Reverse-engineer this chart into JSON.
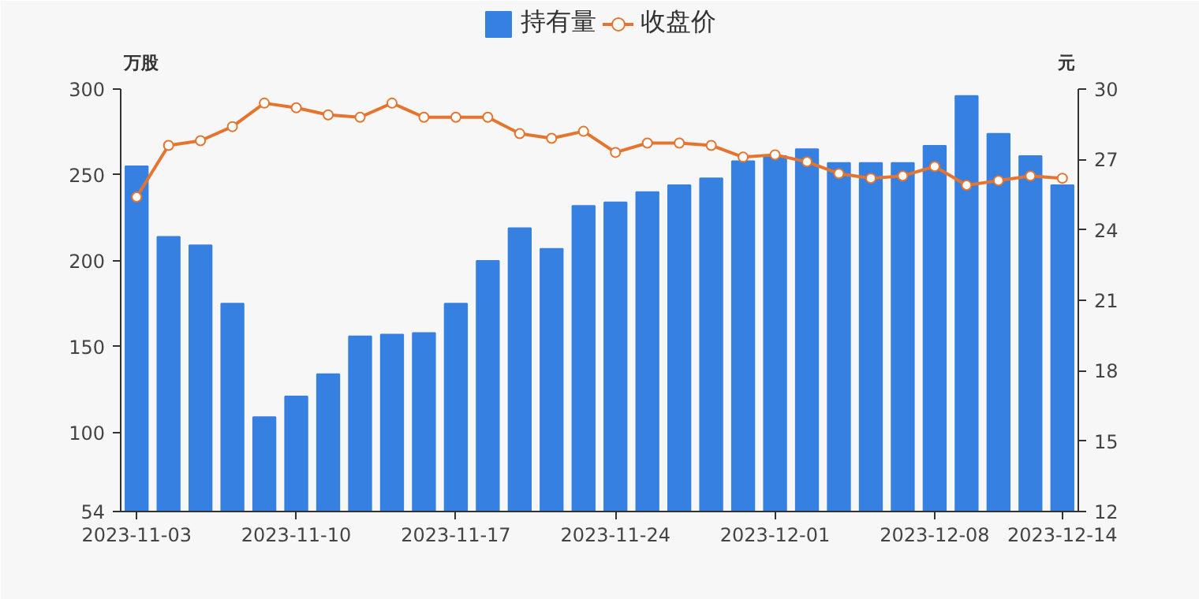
{
  "chart_data": {
    "type": "bar",
    "categories": [
      "2023-11-03",
      null,
      null,
      null,
      null,
      "2023-11-10",
      null,
      null,
      null,
      null,
      "2023-11-17",
      null,
      null,
      null,
      null,
      "2023-11-24",
      null,
      null,
      null,
      null,
      "2023-12-01",
      null,
      null,
      null,
      null,
      "2023-12-08",
      null,
      null,
      null,
      "2023-12-14"
    ],
    "series": [
      {
        "name": "持有量",
        "color": "#3580e0",
        "values": [
          255,
          214,
          209,
          175,
          109,
          121,
          134,
          156,
          157,
          158,
          175,
          200,
          219,
          207,
          232,
          234,
          240,
          244,
          248,
          258,
          261,
          265,
          257,
          257,
          257,
          267,
          296,
          274,
          261,
          244
        ]
      },
      {
        "name": "收盘价",
        "type": "line",
        "axis": "y2",
        "color": "#e5742f",
        "values": [
          25.4,
          27.6,
          27.8,
          28.4,
          29.4,
          29.2,
          28.9,
          28.8,
          29.4,
          28.8,
          28.8,
          28.8,
          28.1,
          27.9,
          28.2,
          27.3,
          27.7,
          27.7,
          27.6,
          27.1,
          27.2,
          26.9,
          26.4,
          26.2,
          26.3,
          26.7,
          25.9,
          26.1,
          26.3,
          26.2
        ]
      }
    ],
    "ylabel": "万股",
    "y2label": "元",
    "ylim": [
      54,
      300
    ],
    "yticks": [
      54,
      100,
      150,
      200,
      250,
      300
    ],
    "y2lim": [
      12,
      30
    ],
    "y2ticks": [
      12,
      15,
      18,
      21,
      24,
      27,
      30
    ],
    "grid": false,
    "legend": "top",
    "marker": "circle",
    "line_style": "solid"
  }
}
